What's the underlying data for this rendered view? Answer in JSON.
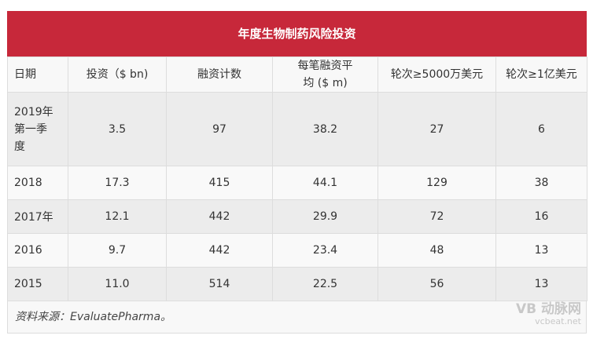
{
  "title": "年度生物制药风险投资",
  "headers": [
    "日期",
    "投资（$ bn)",
    "融资计数",
    "每笔融资平均 ($ m)",
    "轮次≥5000万美元",
    "轮次≥1亿美元"
  ],
  "rows": [
    [
      "2019年第一季度",
      "3.5",
      "97",
      "38.2",
      "27",
      "6"
    ],
    [
      "2018",
      "17.3",
      "415",
      "44.1",
      "129",
      "38"
    ],
    [
      "2017年",
      "12.1",
      "442",
      "29.9",
      "72",
      "16"
    ],
    [
      "2016",
      "9.7",
      "442",
      "23.4",
      "48",
      "13"
    ],
    [
      "2015",
      "11.0",
      "514",
      "22.5",
      "56",
      "13"
    ]
  ],
  "footer": "资料来源：EvaluatePharma。",
  "watermark": {
    "logo": "VB 动脉网",
    "url": "vcbeat.net"
  },
  "colors": {
    "title_bar": "#c7283a"
  }
}
